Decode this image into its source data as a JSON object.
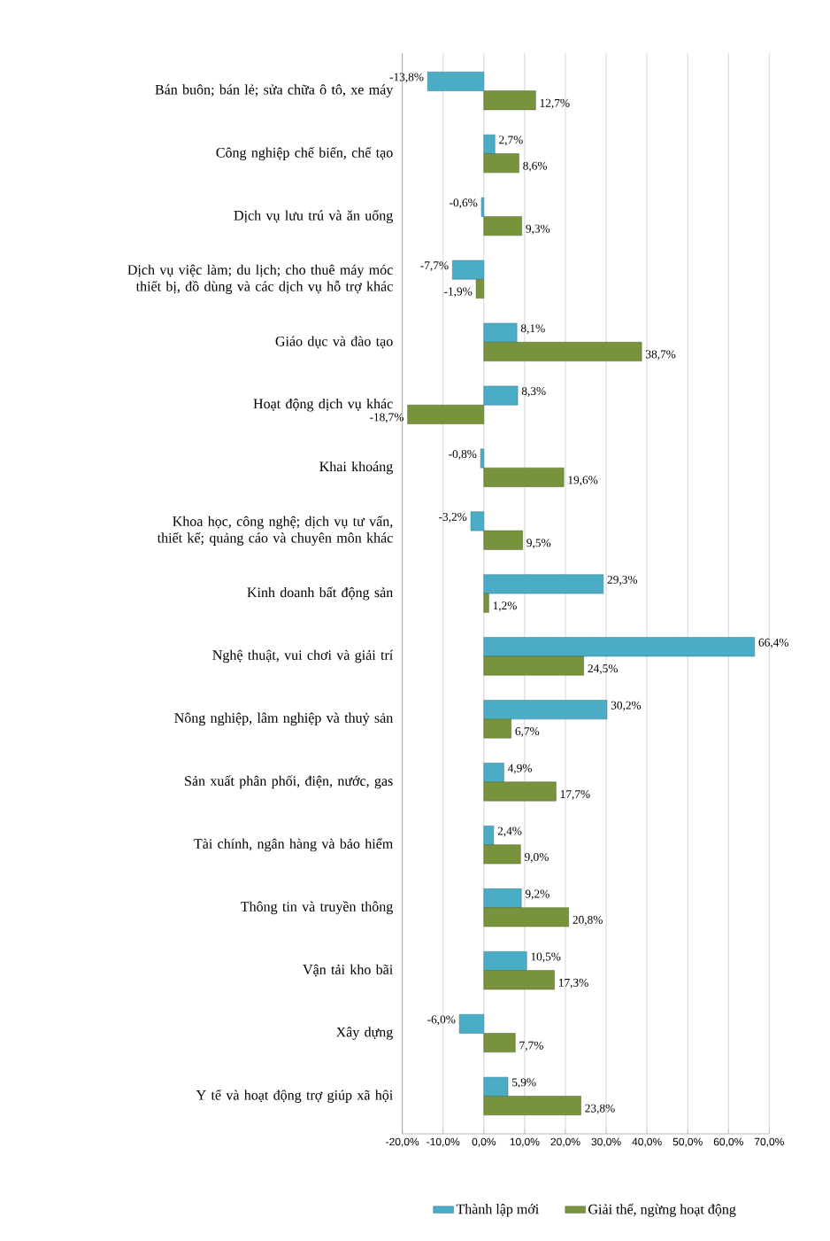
{
  "chart_data": {
    "type": "bar",
    "orientation": "horizontal",
    "grid": "x",
    "legend": "bottom",
    "categories": [
      "Bán buôn; bán lẻ; sửa chữa ô tô, xe máy",
      "Công nghiệp chế biến, chế tạo",
      "Dịch vụ lưu trú và ăn uống",
      "Dịch vụ việc làm; du lịch; cho thuê máy móc thiết bị, đồ dùng và các dịch vụ hỗ trợ khác",
      "Giáo dục và đào tạo",
      "Hoạt động dịch vụ khác",
      "Khai khoáng",
      "Khoa học, công nghệ; dịch vụ tư vấn, thiết kế; quảng cáo và chuyên môn khác",
      "Kinh doanh bất động sản",
      "Nghệ thuật, vui chơi và giải trí",
      "Nông nghiệp,  lâm nghiệp và thuỷ sản",
      "Sản xuất phân phối, điện, nước, gas",
      "Tài chính, ngân hàng và bảo hiểm",
      "Thông tin và truyền thông",
      "Vận tải kho bãi",
      "Xây  dựng",
      "Y tế và hoạt động trợ giúp xã hội"
    ],
    "xlim": [
      -20,
      70
    ],
    "xticks": [
      {
        "value": -20,
        "label": "-20,0%"
      },
      {
        "value": -10,
        "label": "-10,0%"
      },
      {
        "value": 0,
        "label": "0,0%"
      },
      {
        "value": 10,
        "label": "10,0%"
      },
      {
        "value": 20,
        "label": "20,0%"
      },
      {
        "value": 30,
        "label": "30,0%"
      },
      {
        "value": 40,
        "label": "40,0%"
      },
      {
        "value": 50,
        "label": "50,0%"
      },
      {
        "value": 60,
        "label": "60,0%"
      },
      {
        "value": 70,
        "label": "70,0%"
      }
    ],
    "series": [
      {
        "name": "Thành lập mới",
        "color": "#4bacc6",
        "values": [
          -13.8,
          2.7,
          -0.6,
          -7.7,
          8.1,
          8.3,
          -0.8,
          -3.2,
          29.3,
          66.4,
          30.2,
          4.9,
          2.4,
          9.2,
          10.5,
          -6.0,
          5.9
        ],
        "value_labels": [
          "-13,8%",
          "2,7%",
          "-0,6%",
          "-7,7%",
          "8,1%",
          "8,3%",
          "-0,8%",
          "-3,2%",
          "29,3%",
          "66,4%",
          "30,2%",
          "4,9%",
          "2,4%",
          "9,2%",
          "10,5%",
          "-6,0%",
          "5,9%"
        ]
      },
      {
        "name": "Giải thể, ngừng hoạt động",
        "color": "#77933c",
        "values": [
          12.7,
          8.6,
          9.3,
          -1.9,
          38.7,
          -18.7,
          19.6,
          9.5,
          1.2,
          24.5,
          6.7,
          17.7,
          9.0,
          20.8,
          17.3,
          7.7,
          23.8
        ],
        "value_labels": [
          "12,7%",
          "8,6%",
          "9,3%",
          "-1,9%",
          "38,7%",
          "-18,7%",
          "19,6%",
          "9,5%",
          "1,2%",
          "24,5%",
          "6,7%",
          "17,7%",
          "9,0%",
          "20,8%",
          "17,3%",
          "7,7%",
          "23,8%"
        ]
      }
    ]
  }
}
